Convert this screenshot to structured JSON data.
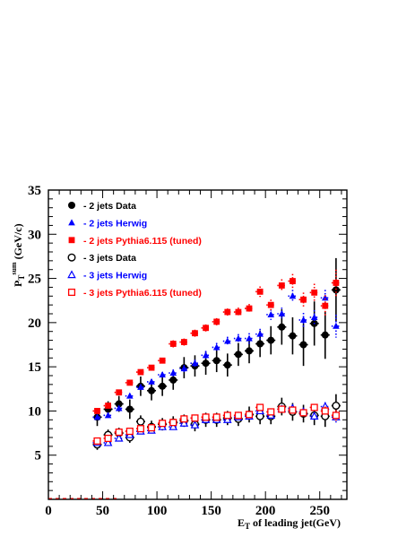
{
  "chart_data": {
    "type": "scatter",
    "xlabel": "E",
    "xlabel_sub": "T",
    "xlabel_rest": " of leading jet(GeV)",
    "ylabel": "P",
    "ylabel_sub": "T",
    "ylabel_sup": "sum",
    "ylabel_rest": " (GeV/c)",
    "xlim": [
      0,
      275
    ],
    "ylim": [
      0,
      35
    ],
    "xticks": [
      "0",
      "50",
      "100",
      "150",
      "200",
      "250"
    ],
    "yticks": [
      "5",
      "10",
      "15",
      "20",
      "25",
      "30",
      "35"
    ],
    "legend_position": "top-left",
    "colors": {
      "data": "#000000",
      "herwig": "#0000ff",
      "pythia": "#ff0000"
    },
    "series": [
      {
        "name": "- 2 jets Data",
        "marker": "filled-circle",
        "color": "#000000",
        "x": [
          45,
          55,
          65,
          75,
          85,
          95,
          105,
          115,
          125,
          135,
          145,
          155,
          165,
          175,
          185,
          195,
          205,
          215,
          225,
          235,
          245,
          255,
          265
        ],
        "y": [
          9.3,
          10.2,
          10.8,
          10.2,
          12.8,
          12.3,
          12.8,
          13.5,
          14.9,
          15.1,
          15.4,
          15.7,
          15.2,
          16.4,
          16.8,
          17.6,
          18.0,
          19.5,
          18.5,
          17.5,
          19.9,
          18.6,
          23.7
        ],
        "err": [
          1.0,
          0.9,
          0.9,
          1.1,
          1.1,
          1.1,
          1.1,
          1.1,
          1.2,
          1.2,
          1.3,
          1.3,
          1.3,
          1.3,
          1.4,
          1.5,
          1.6,
          2.0,
          2.1,
          2.4,
          2.5,
          2.7,
          3.6
        ]
      },
      {
        "name": "- 2 jets Herwig",
        "marker": "filled-triangle",
        "color": "#0000ff",
        "x": [
          45,
          55,
          65,
          75,
          85,
          95,
          105,
          115,
          125,
          135,
          145,
          155,
          165,
          175,
          185,
          195,
          205,
          215,
          225,
          235,
          245,
          255,
          265
        ],
        "y": [
          9.3,
          9.5,
          10.3,
          11.7,
          12.7,
          13.3,
          14.1,
          14.3,
          14.8,
          15.4,
          16.3,
          17.2,
          17.9,
          18.2,
          18.2,
          18.7,
          20.9,
          21.0,
          23.0,
          20.3,
          20.6,
          22.8,
          19.6
        ],
        "err": [
          0.3,
          0.3,
          0.3,
          0.3,
          0.3,
          0.3,
          0.3,
          0.4,
          0.4,
          0.4,
          0.5,
          0.5,
          0.5,
          0.5,
          0.6,
          0.6,
          0.6,
          0.7,
          0.7,
          0.8,
          0.8,
          0.9,
          1.3
        ]
      },
      {
        "name": "- 2 jets Pythia6.115 (tuned)",
        "marker": "filled-square",
        "color": "#ff0000",
        "x": [
          45,
          55,
          65,
          75,
          85,
          95,
          105,
          115,
          125,
          135,
          145,
          155,
          165,
          175,
          185,
          195,
          205,
          215,
          225,
          235,
          245,
          255,
          265
        ],
        "y": [
          10.0,
          10.6,
          12.1,
          13.2,
          14.4,
          14.9,
          15.7,
          17.6,
          17.8,
          18.8,
          19.4,
          20.1,
          21.2,
          21.2,
          21.6,
          23.5,
          22.0,
          24.2,
          24.7,
          22.6,
          23.4,
          21.9,
          24.5
        ],
        "err": [
          0.3,
          0.3,
          0.3,
          0.3,
          0.3,
          0.3,
          0.3,
          0.4,
          0.4,
          0.4,
          0.4,
          0.4,
          0.4,
          0.5,
          0.5,
          0.6,
          0.6,
          0.7,
          0.8,
          0.8,
          1.0,
          1.2,
          1.5
        ]
      },
      {
        "name": "- 3 jets Data",
        "marker": "open-circle",
        "color": "#000000",
        "x": [
          45,
          55,
          65,
          75,
          85,
          95,
          105,
          115,
          125,
          135,
          145,
          155,
          165,
          175,
          185,
          195,
          205,
          215,
          225,
          235,
          245,
          255,
          265
        ],
        "y": [
          6.2,
          7.3,
          7.5,
          7.0,
          8.8,
          8.2,
          8.5,
          8.7,
          8.9,
          8.5,
          9.0,
          9.0,
          9.2,
          9.1,
          9.6,
          9.4,
          9.4,
          10.5,
          9.9,
          9.7,
          9.5,
          9.4,
          10.6
        ],
        "err": [
          0.6,
          0.6,
          0.6,
          0.6,
          0.7,
          0.7,
          0.7,
          0.7,
          0.7,
          0.8,
          0.8,
          0.8,
          0.8,
          0.8,
          0.9,
          0.9,
          0.9,
          1.0,
          1.0,
          1.0,
          1.1,
          1.2,
          1.3
        ]
      },
      {
        "name": "- 3 jets Herwig",
        "marker": "open-triangle",
        "color": "#0000ff",
        "x": [
          45,
          55,
          65,
          75,
          85,
          95,
          105,
          115,
          125,
          135,
          145,
          155,
          165,
          175,
          185,
          195,
          205,
          215,
          225,
          235,
          245,
          255,
          265
        ],
        "y": [
          6.4,
          6.4,
          6.9,
          7.3,
          7.7,
          7.8,
          8.2,
          8.2,
          8.6,
          8.4,
          9.0,
          9.0,
          9.0,
          9.3,
          9.4,
          10.0,
          9.5,
          10.2,
          10.3,
          9.9,
          9.4,
          10.5,
          9.3
        ],
        "err": [
          0.2,
          0.2,
          0.2,
          0.2,
          0.2,
          0.2,
          0.2,
          0.2,
          0.3,
          0.3,
          0.3,
          0.3,
          0.3,
          0.3,
          0.3,
          0.3,
          0.3,
          0.4,
          0.4,
          0.4,
          0.4,
          0.5,
          0.6
        ]
      },
      {
        "name": "- 3 jets Pythia6.115 (tuned)",
        "marker": "open-square",
        "color": "#ff0000",
        "x": [
          45,
          55,
          65,
          75,
          85,
          95,
          105,
          115,
          125,
          135,
          145,
          155,
          165,
          175,
          185,
          195,
          205,
          215,
          225,
          235,
          245,
          255,
          265
        ],
        "y": [
          6.6,
          6.9,
          7.6,
          7.7,
          8.0,
          8.1,
          8.6,
          8.7,
          9.1,
          9.2,
          9.3,
          9.3,
          9.5,
          9.5,
          9.6,
          10.4,
          9.9,
          10.2,
          10.1,
          9.8,
          10.4,
          10.0,
          9.5
        ],
        "err": [
          0.2,
          0.2,
          0.2,
          0.2,
          0.2,
          0.2,
          0.2,
          0.2,
          0.3,
          0.3,
          0.3,
          0.3,
          0.3,
          0.3,
          0.3,
          0.3,
          0.3,
          0.4,
          0.4,
          0.4,
          0.4,
          0.5,
          0.6
        ]
      }
    ]
  }
}
